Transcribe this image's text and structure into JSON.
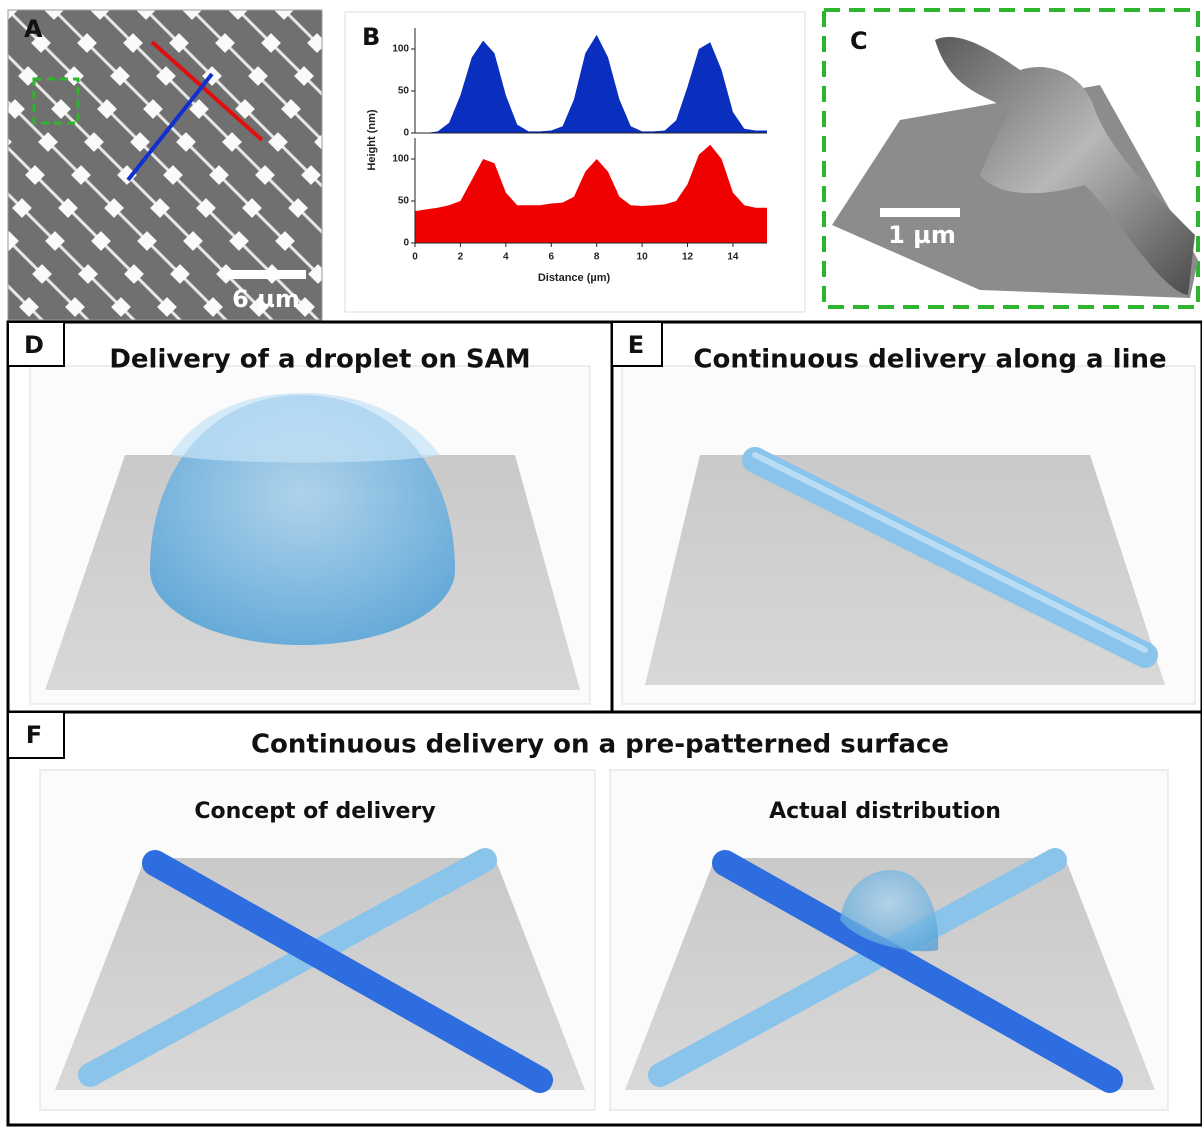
{
  "panels": [
    {
      "label": "A",
      "scale_bar": "6 µm"
    },
    {
      "label": "B"
    },
    {
      "label": "C",
      "scale_bar": "1 µm"
    },
    {
      "label": "D",
      "title": "Delivery of a droplet on SAM"
    },
    {
      "label": "E",
      "title": "Continuous delivery along a line"
    },
    {
      "label": "F",
      "title": "Continuous delivery on a pre-patterned surface",
      "subpanels": [
        "Concept of delivery",
        "Actual distribution"
      ]
    }
  ],
  "chart_data": [
    {
      "type": "area",
      "y_label": "Height (nm)",
      "color": "#0a2fbf",
      "x": [
        0,
        0.5,
        1,
        1.5,
        2,
        2.5,
        3,
        3.5,
        4,
        4.5,
        5,
        5.5,
        6,
        6.5,
        7,
        7.5,
        8,
        8.5,
        9,
        9.5,
        10,
        10.5,
        11,
        11.5,
        12,
        12.5,
        13,
        13.5,
        14,
        14.5,
        15,
        15.5
      ],
      "values": [
        0,
        0,
        2,
        12,
        45,
        90,
        110,
        95,
        45,
        10,
        2,
        2,
        3,
        8,
        40,
        95,
        117,
        90,
        40,
        8,
        2,
        2,
        3,
        15,
        55,
        100,
        108,
        75,
        25,
        5,
        3,
        3
      ],
      "xlim": [
        0,
        15.5
      ],
      "ylim": [
        0,
        125
      ],
      "yticks": [
        0,
        50,
        100
      ]
    },
    {
      "type": "area",
      "x_label": "Distance (µm)",
      "color": "#f00000",
      "x": [
        0,
        0.5,
        1,
        1.5,
        2,
        2.5,
        3,
        3.5,
        4,
        4.5,
        5,
        5.5,
        6,
        6.5,
        7,
        7.5,
        8,
        8.5,
        9,
        9.5,
        10,
        10.5,
        11,
        11.5,
        12,
        12.5,
        13,
        13.5,
        14,
        14.5,
        15,
        15.5
      ],
      "values": [
        38,
        40,
        42,
        45,
        50,
        75,
        100,
        95,
        60,
        45,
        45,
        45,
        47,
        48,
        55,
        85,
        100,
        85,
        55,
        45,
        44,
        45,
        46,
        50,
        70,
        105,
        117,
        100,
        60,
        45,
        42,
        42
      ],
      "xlim": [
        0,
        15.5
      ],
      "ylim": [
        0,
        125
      ],
      "yticks": [
        0,
        50,
        100
      ],
      "xticks": [
        0,
        2,
        4,
        6,
        8,
        10,
        12,
        14
      ]
    }
  ]
}
